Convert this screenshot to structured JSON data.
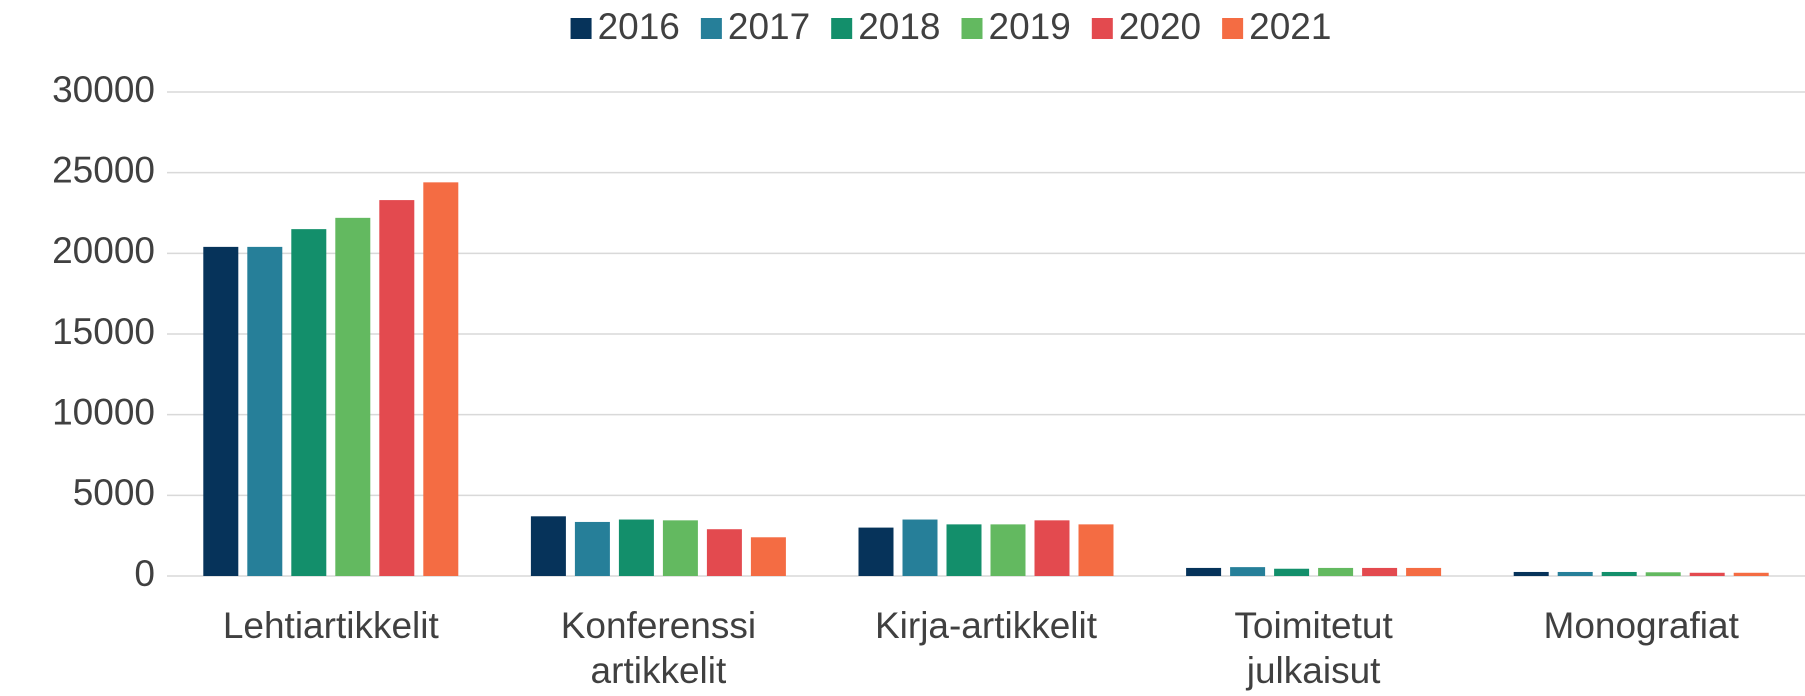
{
  "chart_data": {
    "type": "bar",
    "categories": [
      "Lehtiartikkelit",
      "Konferenssi artikkelit",
      "Kirja-artikkelit",
      "Toimitetut julkaisut",
      "Monografiat"
    ],
    "series": [
      {
        "name": "2016",
        "color": "#06335a",
        "values": [
          20400,
          3700,
          3000,
          500,
          250
        ]
      },
      {
        "name": "2017",
        "color": "#267f99",
        "values": [
          20400,
          3350,
          3500,
          550,
          250
        ]
      },
      {
        "name": "2018",
        "color": "#138f6b",
        "values": [
          21500,
          3500,
          3200,
          450,
          250
        ]
      },
      {
        "name": "2019",
        "color": "#63b960",
        "values": [
          22200,
          3450,
          3200,
          500,
          230
        ]
      },
      {
        "name": "2020",
        "color": "#e34a4f",
        "values": [
          23300,
          2900,
          3450,
          500,
          200
        ]
      },
      {
        "name": "2021",
        "color": "#f46c43",
        "values": [
          24400,
          2400,
          3200,
          500,
          200
        ]
      }
    ],
    "ylim": [
      0,
      30000
    ],
    "yticks": [
      0,
      5000,
      10000,
      15000,
      20000,
      25000,
      30000
    ],
    "grid": true,
    "legend": "top"
  }
}
